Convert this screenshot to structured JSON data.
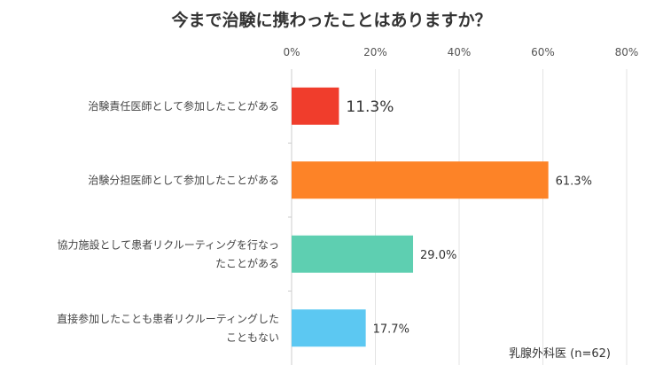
{
  "chart_data": {
    "type": "bar",
    "orientation": "horizontal",
    "title": "今まで治験に携わったことはありますか？",
    "categories": [
      [
        "治験責任医師として参加したことがある"
      ],
      [
        "治験分担医師として参加したことがある"
      ],
      [
        "協力施設として患者リクルーティングを行なっ",
        "たことがある"
      ],
      [
        "直接参加したことも患者リクルーティングした",
        "こともない"
      ]
    ],
    "values": [
      11.3,
      61.3,
      29.0,
      17.7
    ],
    "value_labels": [
      "11.3%",
      "61.3%",
      "29.0%",
      "17.7%"
    ],
    "colors": [
      "#f03d2c",
      "#fd8327",
      "#5ecfb1",
      "#5cc8f2"
    ],
    "xlim": [
      0,
      80
    ],
    "ticks": [
      0,
      20,
      40,
      60,
      80
    ],
    "tick_labels": [
      "0%",
      "20%",
      "40%",
      "60%",
      "80%"
    ],
    "axis_position": "top",
    "grid": true,
    "note": "乳腺外科医 (n=62)"
  }
}
